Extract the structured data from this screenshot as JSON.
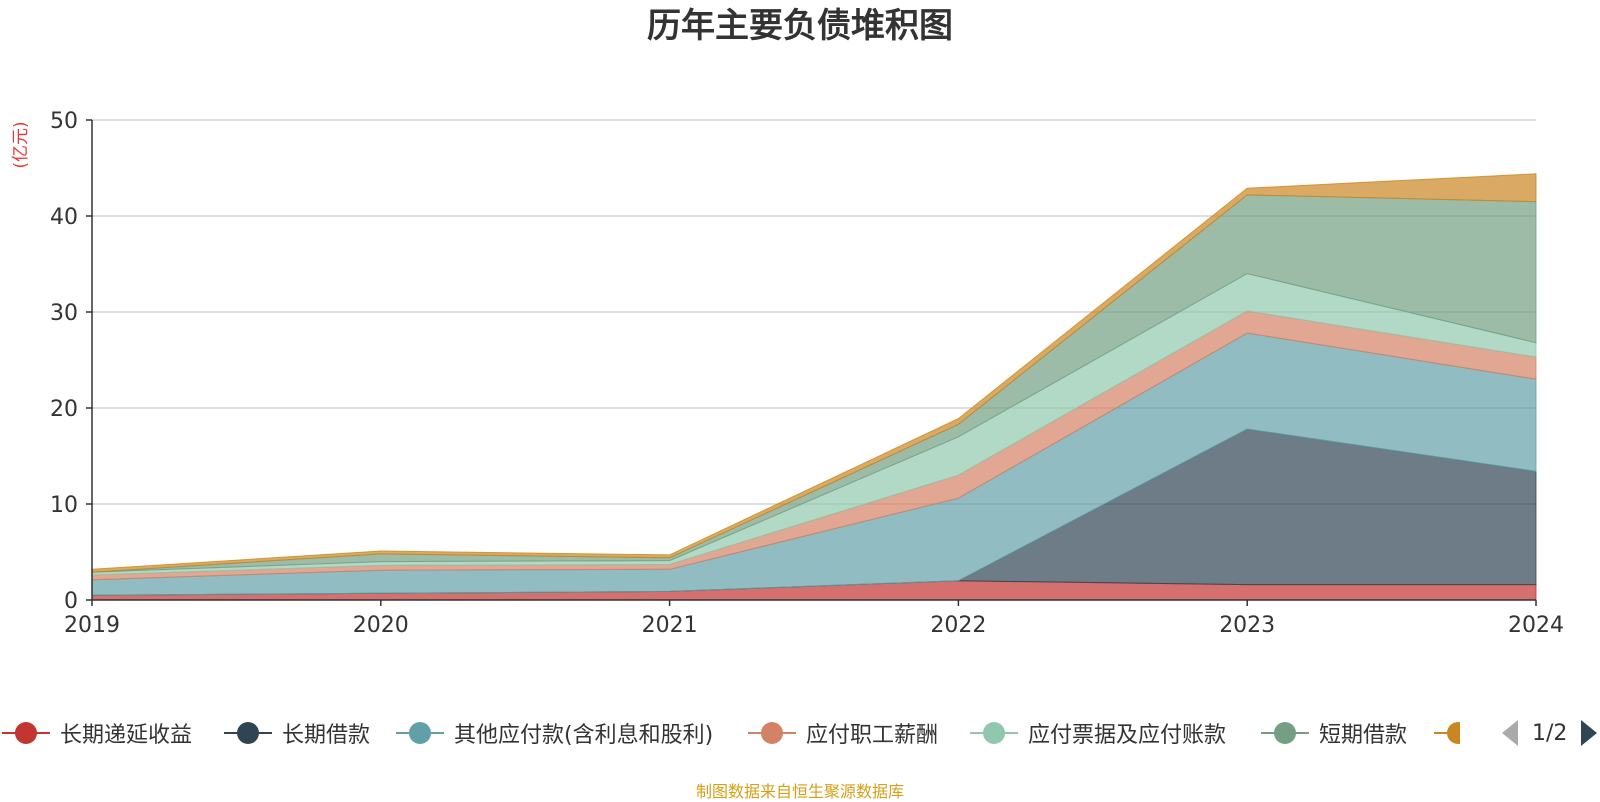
{
  "chart_data": {
    "type": "area",
    "title": "历年主要负债堆积图",
    "ylabel": "(亿元)",
    "ylim": [
      0,
      50
    ],
    "yticks": [
      0,
      10,
      20,
      30,
      40,
      50
    ],
    "categories": [
      "2019",
      "2020",
      "2021",
      "2022",
      "2023",
      "2024"
    ],
    "grid": true,
    "stacked": true,
    "series": [
      {
        "name": "长期递延收益",
        "color": "#c23531",
        "values": [
          0.5,
          0.7,
          0.9,
          2.0,
          1.6,
          1.6
        ]
      },
      {
        "name": "长期借款",
        "color": "#2f4554",
        "values": [
          0,
          0,
          0,
          0,
          16.2,
          11.8
        ]
      },
      {
        "name": "其他应付款(含利息和股利)",
        "color": "#61a0a8",
        "values": [
          1.6,
          2.4,
          2.3,
          8.6,
          10.0,
          9.6
        ]
      },
      {
        "name": "应付职工薪酬",
        "color": "#d48265",
        "values": [
          0.5,
          0.5,
          0.5,
          2.4,
          2.3,
          2.3
        ]
      },
      {
        "name": "应付票据及应付账款",
        "color": "#91c7ae",
        "values": [
          0.3,
          0.4,
          0.4,
          4.0,
          3.9,
          1.5
        ]
      },
      {
        "name": "短期借款",
        "color": "#749f83",
        "values": [
          0,
          0.8,
          0.3,
          1.3,
          8.2,
          14.7
        ]
      },
      {
        "name": "",
        "color": "#ca8622",
        "values": [
          0.3,
          0.3,
          0.3,
          0.6,
          0.7,
          2.9
        ]
      }
    ]
  },
  "legend": {
    "items": [
      {
        "label": "长期递延收益",
        "color": "#c23531"
      },
      {
        "label": "长期借款",
        "color": "#2f4554"
      },
      {
        "label": "其他应付款(含利息和股利)",
        "color": "#61a0a8"
      },
      {
        "label": "应付职工薪酬",
        "color": "#d48265"
      },
      {
        "label": "应付票据及应付账款",
        "color": "#91c7ae"
      },
      {
        "label": "短期借款",
        "color": "#749f83"
      },
      {
        "label": "",
        "color": "#ca8622"
      }
    ],
    "page_indicator": "1/2"
  },
  "footer": "制图数据来自恒生聚源数据库"
}
